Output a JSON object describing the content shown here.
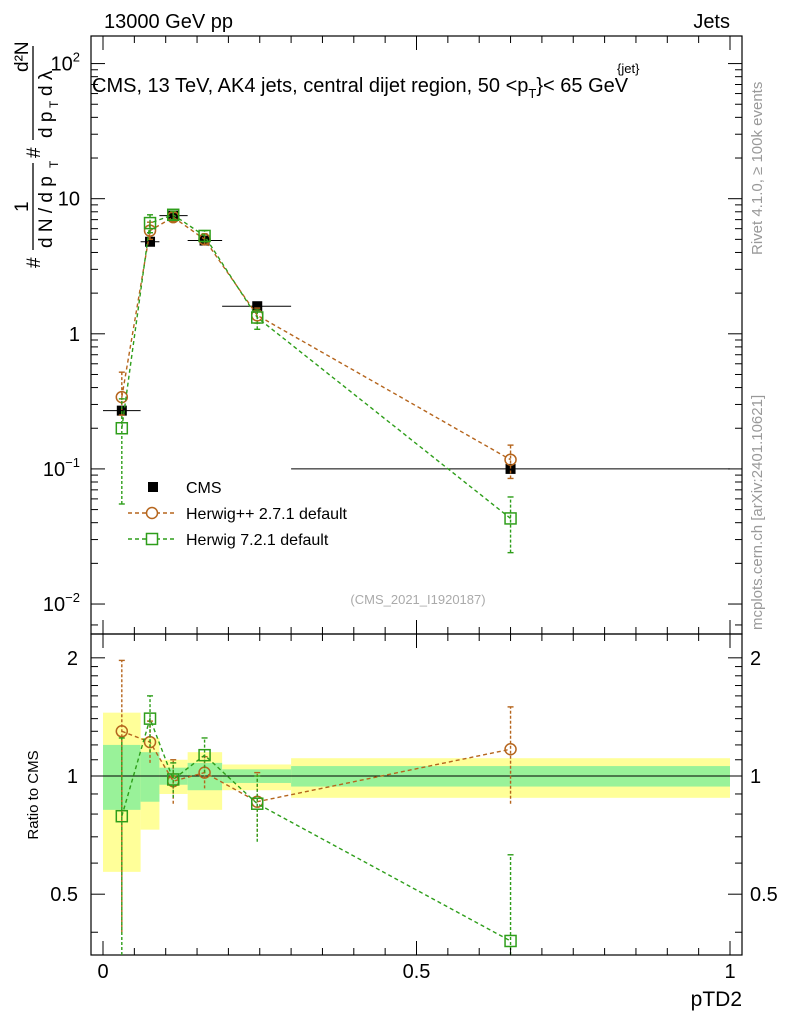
{
  "header": {
    "left": "13000 GeV pp",
    "right": "Jets"
  },
  "chart_data": {
    "type": "scatter",
    "title": "CMS, 13 TeV, AK4 jets, central dijet region, 50 <p",
    "title_super": "{jet}",
    "title_sub": "T",
    "title_tail": "}< 65 GeV",
    "xlabel": "pTD2",
    "ylabel_main": "1 / dN/dp_T  d²N / dp_T dλ",
    "ylabel_ratio": "Ratio to CMS",
    "xlim": [
      -0.01,
      1.01
    ],
    "ylim_main": [
      0.006,
      160
    ],
    "ylim_ratio": [
      0.35,
      2.3
    ],
    "yscale_main": "log",
    "main_ticks": [
      "10^-2",
      "10^-1",
      "1",
      "10",
      "10^2"
    ],
    "ratio_ticks": [
      "0.5",
      "1",
      "2"
    ],
    "x_ticks": [
      "0",
      "0.5",
      "1"
    ],
    "analysis_id": "(CMS_2021_I1920187)",
    "side_label_top": "Rivet 4.1.0, ≥ 100k events",
    "side_label_bottom": "mcplots.cern.ch [arXiv:2401.10621]",
    "legend_position": "lower-left",
    "series": [
      {
        "name": "CMS",
        "color": "#000000",
        "marker": "filled-square",
        "x": [
          0.03,
          0.075,
          0.112,
          0.162,
          0.246,
          0.65
        ],
        "xerr": [
          [
            0.0,
            0.06
          ],
          [
            0.06,
            0.09
          ],
          [
            0.09,
            0.135
          ],
          [
            0.135,
            0.19
          ],
          [
            0.19,
            0.3
          ],
          [
            0.3,
            1.0
          ]
        ],
        "y": [
          0.27,
          4.8,
          7.5,
          4.9,
          1.6,
          0.1
        ],
        "band_inner": [
          [
            0.82,
            1.2
          ],
          [
            0.86,
            1.15
          ],
          [
            0.95,
            1.05
          ],
          [
            0.92,
            1.08
          ],
          [
            0.96,
            1.04
          ],
          [
            0.94,
            1.06
          ]
        ],
        "band_outer": [
          [
            0.57,
            1.45
          ],
          [
            0.73,
            1.25
          ],
          [
            0.9,
            1.1
          ],
          [
            0.82,
            1.15
          ],
          [
            0.92,
            1.07
          ],
          [
            0.88,
            1.11
          ]
        ]
      },
      {
        "name": "Herwig++ 2.7.1 default",
        "color": "#b5651d",
        "marker": "open-circle",
        "x": [
          0.03,
          0.075,
          0.112,
          0.162,
          0.246,
          0.65
        ],
        "y": [
          0.34,
          5.8,
          7.3,
          5.0,
          1.37,
          0.117
        ],
        "yerr": [
          [
            0.25,
            0.52
          ],
          [
            5.0,
            6.7
          ],
          [
            6.8,
            7.9
          ],
          [
            4.6,
            5.5
          ],
          [
            1.2,
            1.55
          ],
          [
            0.085,
            0.15
          ]
        ],
        "ratio": [
          1.3,
          1.22,
          0.97,
          1.02,
          0.86,
          1.17
        ],
        "ratio_err": [
          [
            0.4,
            1.97
          ],
          [
            1.08,
            1.38
          ],
          [
            0.85,
            1.1
          ],
          [
            0.93,
            1.12
          ],
          [
            0.7,
            1.02
          ],
          [
            0.85,
            1.5
          ]
        ]
      },
      {
        "name": "Herwig 7.2.1 default",
        "color": "#2e9e1a",
        "marker": "open-square",
        "x": [
          0.03,
          0.075,
          0.112,
          0.162,
          0.246,
          0.65
        ],
        "y": [
          0.2,
          6.6,
          7.6,
          5.3,
          1.32,
          0.043
        ],
        "yerr": [
          [
            0.055,
            0.33
          ],
          [
            5.6,
            7.6
          ],
          [
            7.0,
            8.1
          ],
          [
            4.8,
            5.8
          ],
          [
            1.08,
            1.5
          ],
          [
            0.024,
            0.062
          ]
        ],
        "ratio": [
          0.79,
          1.4,
          0.98,
          1.13,
          0.85,
          0.38
        ],
        "ratio_err": [
          [
            0.3,
            1.25
          ],
          [
            1.15,
            1.6
          ],
          [
            0.88,
            1.08
          ],
          [
            1.02,
            1.25
          ],
          [
            0.68,
            1.0
          ],
          [
            0.1,
            0.63
          ]
        ]
      }
    ]
  }
}
